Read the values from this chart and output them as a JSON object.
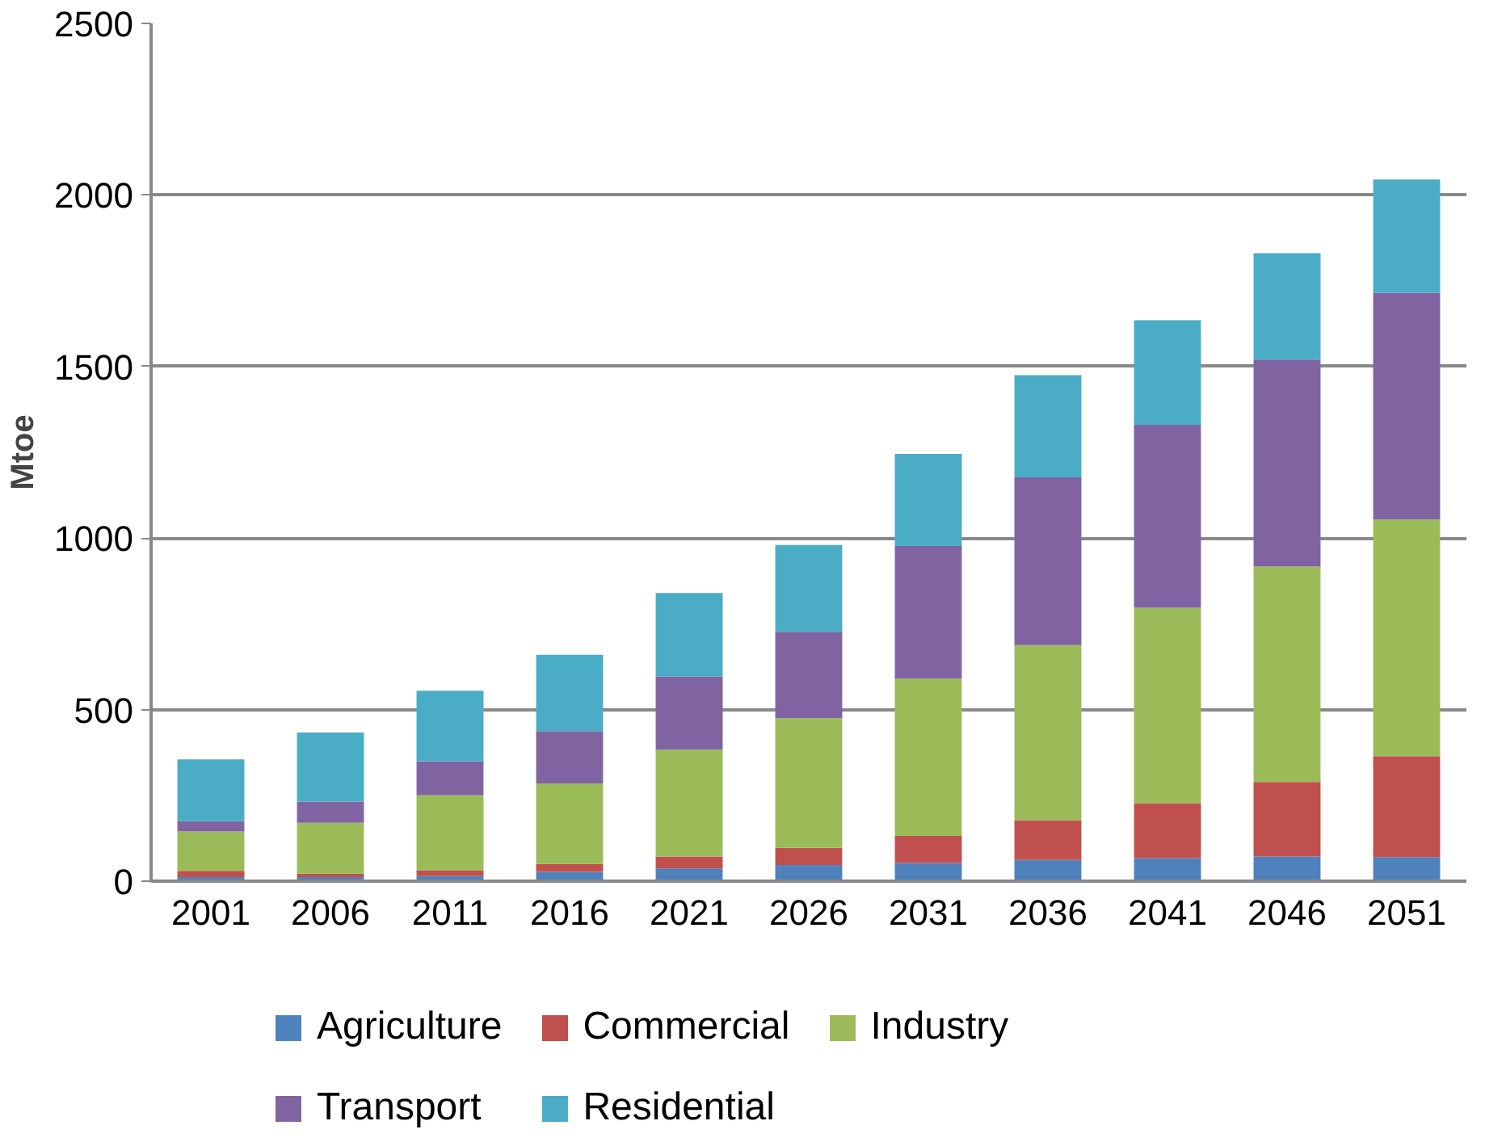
{
  "chart_data": {
    "type": "bar",
    "stacked": true,
    "ylabel": "Mtoe",
    "categories": [
      "2001",
      "2006",
      "2011",
      "2016",
      "2021",
      "2026",
      "2031",
      "2036",
      "2041",
      "2046",
      "2051"
    ],
    "series": [
      {
        "name": "Agriculture",
        "color": "#4f81bd",
        "values": [
          12,
          12,
          15,
          27,
          37,
          47,
          53,
          62,
          67,
          72,
          70
        ]
      },
      {
        "name": "Commercial",
        "color": "#c0504d",
        "values": [
          18,
          10,
          17,
          23,
          35,
          50,
          79,
          116,
          160,
          217,
          294
        ]
      },
      {
        "name": "Industry",
        "color": "#9bbb59",
        "values": [
          115,
          148,
          218,
          235,
          311,
          378,
          458,
          510,
          570,
          628,
          690
        ]
      },
      {
        "name": "Transport",
        "color": "#8064a2",
        "values": [
          30,
          62,
          99,
          152,
          214,
          252,
          387,
          489,
          533,
          603,
          661
        ]
      },
      {
        "name": "Residential",
        "color": "#4bacc6",
        "values": [
          180,
          201,
          206,
          223,
          243,
          253,
          268,
          298,
          305,
          310,
          330
        ]
      }
    ],
    "ylim": [
      0,
      2500
    ],
    "yticks": [
      0,
      500,
      1000,
      1500,
      2000,
      2500
    ],
    "grid": "y",
    "legend": "bottom"
  }
}
